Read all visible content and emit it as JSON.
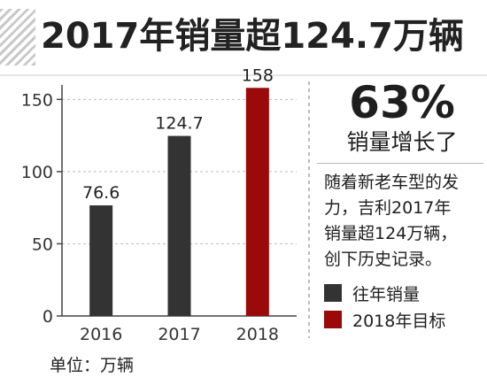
{
  "title": "2017年销量超124.7万辆",
  "colors": {
    "past": "#333333",
    "target": "#9a0a0a"
  },
  "chart_data": {
    "type": "bar",
    "categories": [
      "2016",
      "2017",
      "2018"
    ],
    "values": [
      76.6,
      124.7,
      158
    ],
    "value_labels": [
      "76.6",
      "124.7",
      "158"
    ],
    "bar_kind": [
      "past",
      "past",
      "target"
    ],
    "yticks": [
      0,
      50,
      100,
      150
    ],
    "ylim": [
      0,
      160
    ],
    "grid": "dashed horizontal",
    "unit_label": "单位：万辆"
  },
  "growth": {
    "percent": "63%",
    "label": "销量增长了"
  },
  "description": [
    "随着新老车型的发",
    "力，吉利2017年",
    "销量超124万辆，",
    "创下历史记录。"
  ],
  "legend": [
    {
      "label": "往年销量",
      "color": "#333333"
    },
    {
      "label": "2018年目标",
      "color": "#9a0a0a"
    }
  ]
}
